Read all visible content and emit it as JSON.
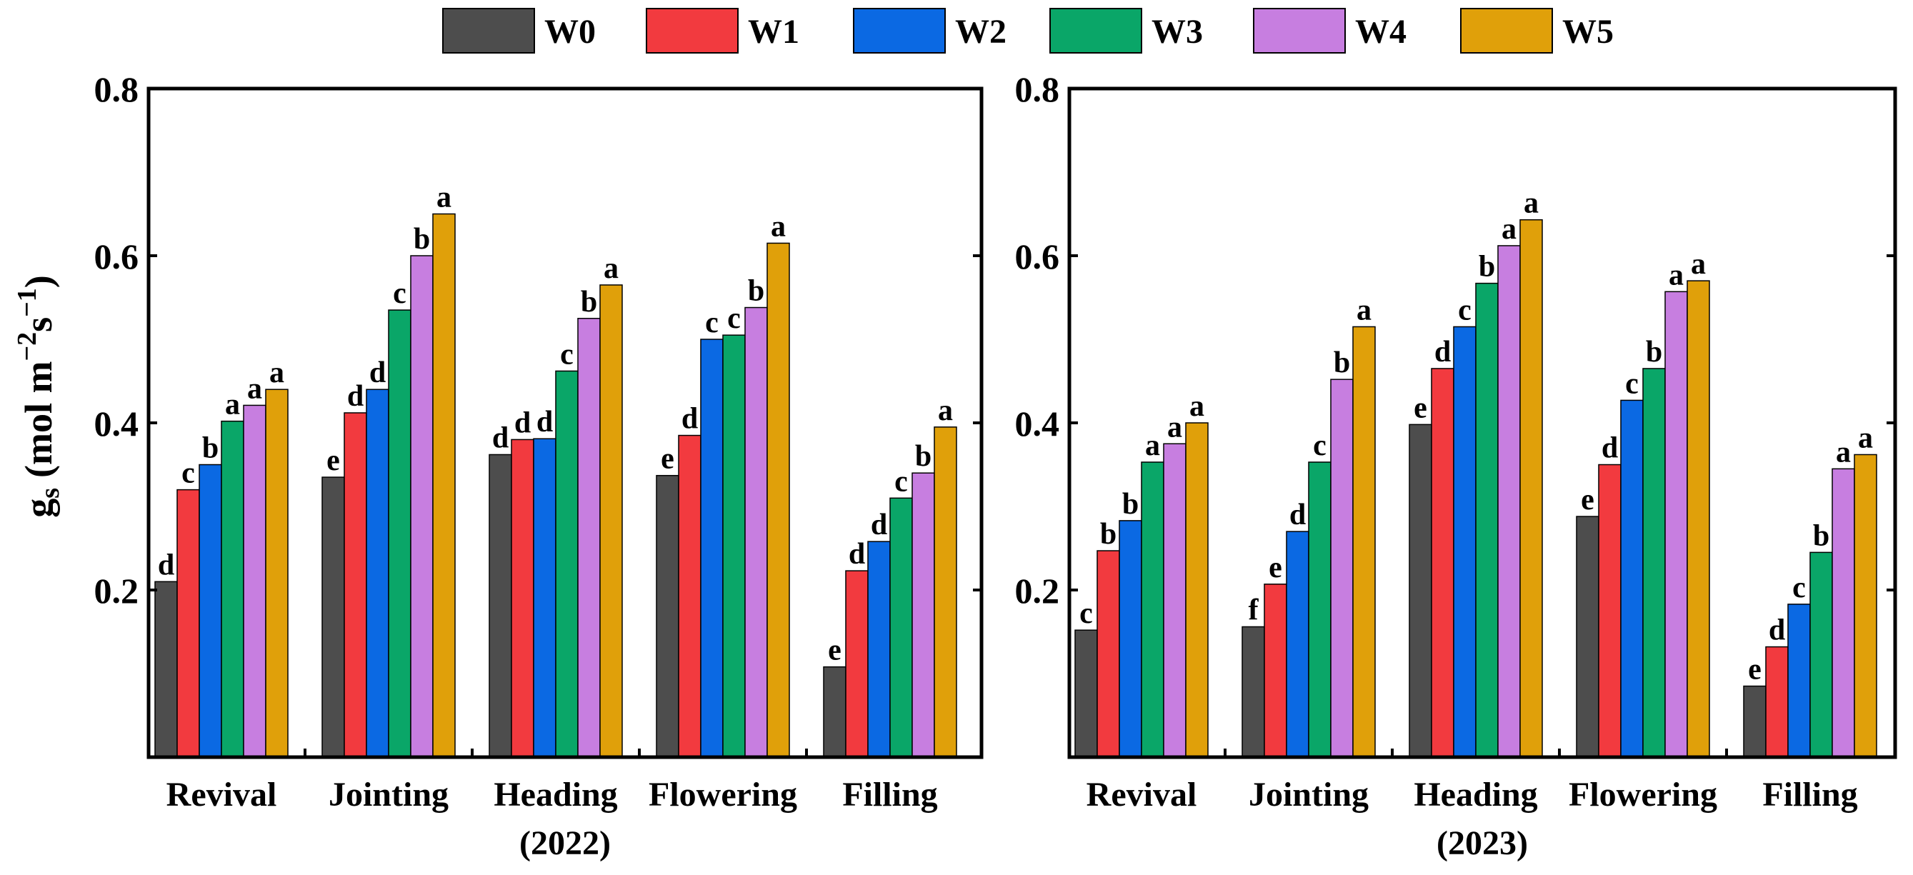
{
  "legend": [
    {
      "name": "W0",
      "color": "#4d4d4d"
    },
    {
      "name": "W1",
      "color": "#f23a3f"
    },
    {
      "name": "W2",
      "color": "#0b69e3"
    },
    {
      "name": "W3",
      "color": "#0aa668"
    },
    {
      "name": "W4",
      "color": "#c77ee0"
    },
    {
      "name": "W5",
      "color": "#e0a00a"
    }
  ],
  "y_axis": {
    "label_main": "g",
    "label_sub": "s",
    "label_units_pre": "(mol m",
    "label_sup1": "−2",
    "label_mid": "s",
    "label_sup2": "−1",
    "label_close": ")"
  },
  "chart_data": [
    {
      "type": "bar",
      "xlabel": "(2022)",
      "categories": [
        "Revival",
        "Jointing",
        "Heading",
        "Flowering",
        "Filling"
      ],
      "ylim": [
        0,
        0.8
      ],
      "yticks": [
        0.2,
        0.4,
        0.6,
        0.8
      ],
      "ytick_labels": [
        "0.2",
        "0.4",
        "0.6",
        "0.8"
      ],
      "series": [
        {
          "name": "W0",
          "values": [
            0.21,
            0.335,
            0.362,
            0.337,
            0.108
          ],
          "letters": [
            "d",
            "e",
            "d",
            "e",
            "e"
          ]
        },
        {
          "name": "W1",
          "values": [
            0.32,
            0.412,
            0.38,
            0.385,
            0.223
          ],
          "letters": [
            "c",
            "d",
            "d",
            "d",
            "d"
          ]
        },
        {
          "name": "W2",
          "values": [
            0.35,
            0.44,
            0.381,
            0.5,
            0.258
          ],
          "letters": [
            "b",
            "d",
            "d",
            "c",
            "d"
          ]
        },
        {
          "name": "W3",
          "values": [
            0.402,
            0.535,
            0.462,
            0.505,
            0.31
          ],
          "letters": [
            "a",
            "c",
            "c",
            "c",
            "c"
          ]
        },
        {
          "name": "W4",
          "values": [
            0.421,
            0.6,
            0.525,
            0.538,
            0.34
          ],
          "letters": [
            "a",
            "b",
            "b",
            "b",
            "b"
          ]
        },
        {
          "name": "W5",
          "values": [
            0.44,
            0.65,
            0.565,
            0.615,
            0.395
          ],
          "letters": [
            "a",
            "a",
            "a",
            "a",
            "a"
          ]
        }
      ]
    },
    {
      "type": "bar",
      "xlabel": "(2023)",
      "categories": [
        "Revival",
        "Jointing",
        "Heading",
        "Flowering",
        "Filling"
      ],
      "ylim": [
        0,
        0.8
      ],
      "yticks": [
        0.2,
        0.4,
        0.6,
        0.8
      ],
      "ytick_labels": [
        "0.2",
        "0.4",
        "0.6",
        "0.8"
      ],
      "series": [
        {
          "name": "W0",
          "values": [
            0.152,
            0.156,
            0.398,
            0.288,
            0.085
          ],
          "letters": [
            "c",
            "f",
            "e",
            "e",
            "e"
          ]
        },
        {
          "name": "W1",
          "values": [
            0.247,
            0.207,
            0.465,
            0.35,
            0.132
          ],
          "letters": [
            "b",
            "e",
            "d",
            "d",
            "d"
          ]
        },
        {
          "name": "W2",
          "values": [
            0.283,
            0.27,
            0.515,
            0.427,
            0.183
          ],
          "letters": [
            "b",
            "d",
            "c",
            "c",
            "c"
          ]
        },
        {
          "name": "W3",
          "values": [
            0.353,
            0.353,
            0.567,
            0.465,
            0.245
          ],
          "letters": [
            "a",
            "c",
            "b",
            "b",
            "b"
          ]
        },
        {
          "name": "W4",
          "values": [
            0.375,
            0.452,
            0.612,
            0.557,
            0.345
          ],
          "letters": [
            "a",
            "b",
            "a",
            "a",
            "a"
          ]
        },
        {
          "name": "W5",
          "values": [
            0.4,
            0.515,
            0.643,
            0.57,
            0.362
          ],
          "letters": [
            "a",
            "a",
            "a",
            "a",
            "a"
          ]
        }
      ]
    }
  ]
}
